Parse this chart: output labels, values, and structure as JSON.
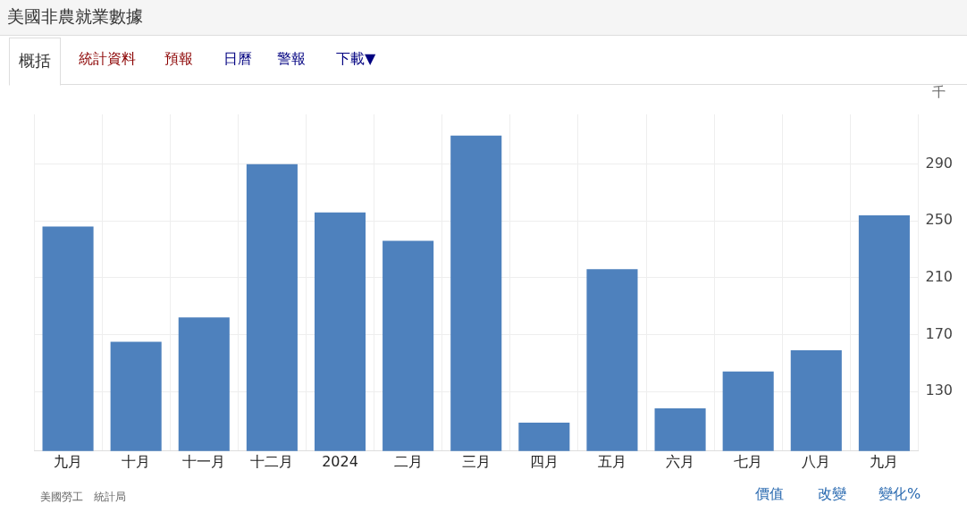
{
  "chart_data": {
    "type": "bar",
    "title": "美國非農就業數據",
    "ylabel": "千",
    "categories": [
      "九月",
      "十月",
      "十一月",
      "十二月",
      "2024",
      "二月",
      "三月",
      "四月",
      "五月",
      "六月",
      "七月",
      "八月",
      "九月"
    ],
    "values": [
      246,
      165,
      182,
      290,
      256,
      236,
      310,
      108,
      216,
      118,
      144,
      159,
      254
    ],
    "color": "#4e81bd",
    "ylim": [
      88,
      325
    ],
    "yticks": [
      130,
      170,
      210,
      250,
      290
    ],
    "grid": true,
    "annotations": [
      "概括",
      "統計資料",
      "預報",
      "日曆",
      "警報",
      "下載▼",
      "美國勞工　統計局",
      "價值",
      "改變",
      "變化%"
    ]
  }
}
